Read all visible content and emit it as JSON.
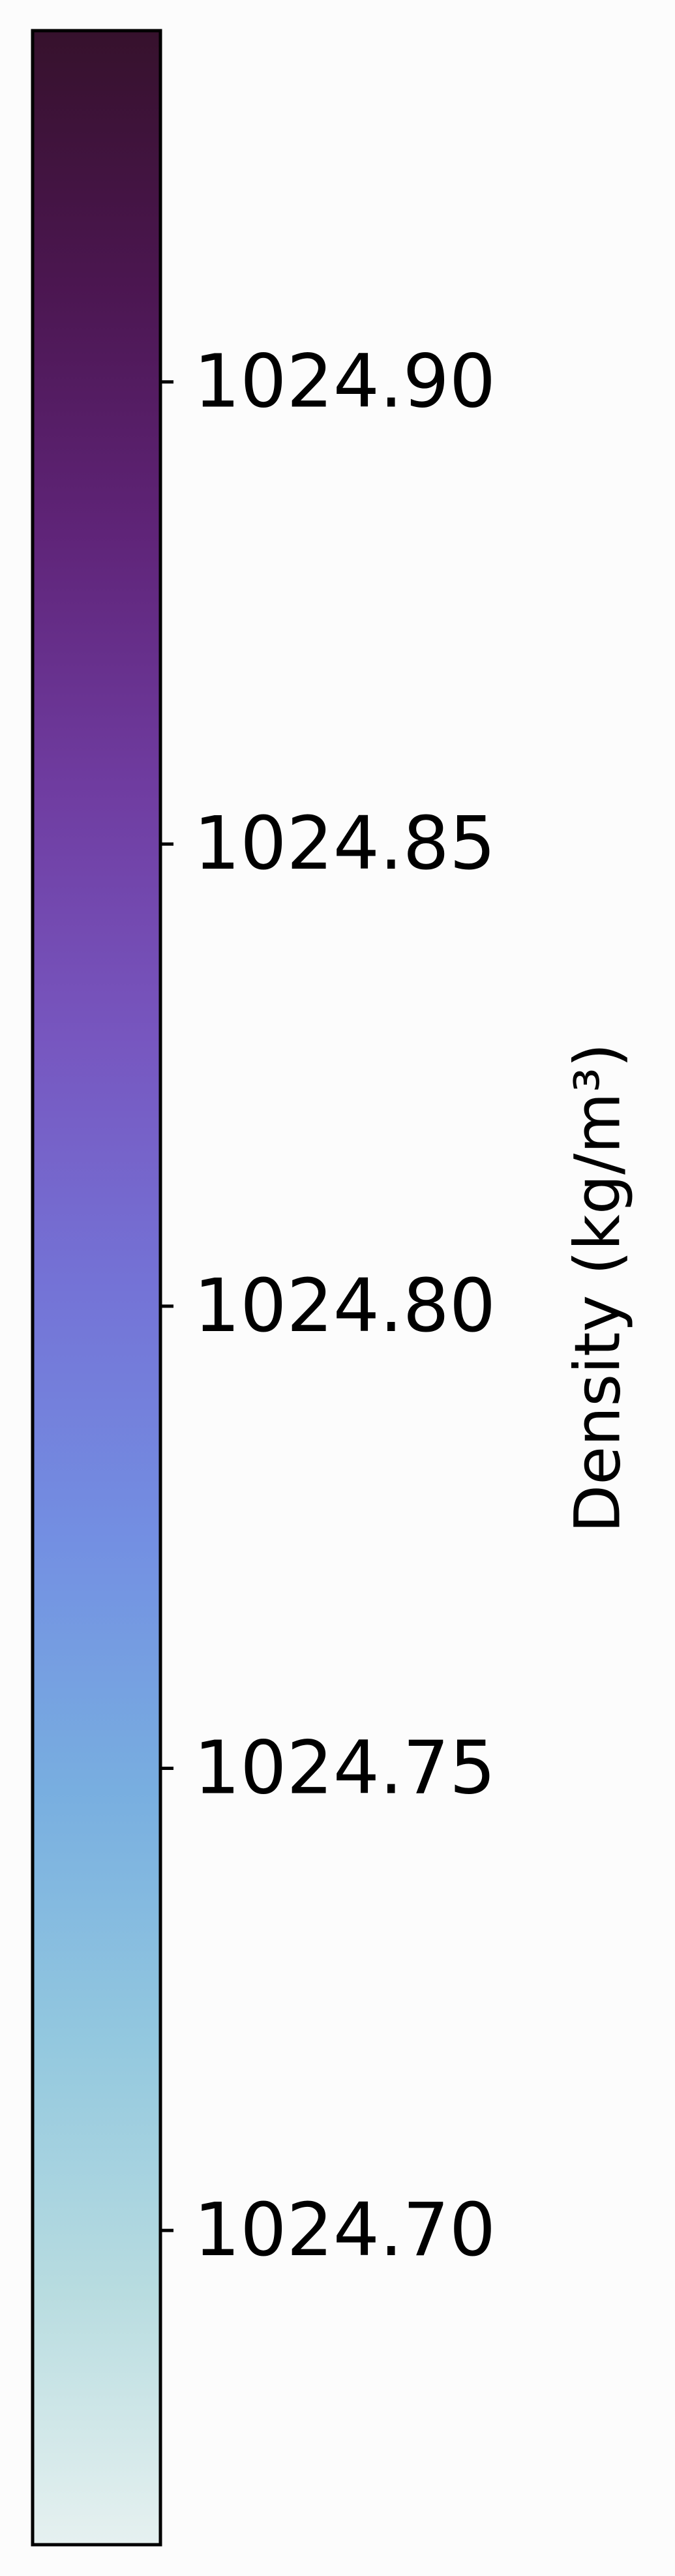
{
  "chart_data": {
    "type": "colorbar",
    "orientation": "vertical",
    "label": "Density (kg/m³)",
    "range": [
      1024.666,
      1024.938
    ],
    "ticks": [
      {
        "value": 1024.7,
        "label": "1024.70"
      },
      {
        "value": 1024.75,
        "label": "1024.75"
      },
      {
        "value": 1024.8,
        "label": "1024.80"
      },
      {
        "value": 1024.85,
        "label": "1024.85"
      },
      {
        "value": 1024.9,
        "label": "1024.90"
      }
    ],
    "colormap": "dense",
    "color_stops": [
      {
        "offset": 0.0,
        "color": "#e6f1f0"
      },
      {
        "offset": 0.1,
        "color": "#b8dce0"
      },
      {
        "offset": 0.2,
        "color": "#93c8df"
      },
      {
        "offset": 0.3,
        "color": "#78aee0"
      },
      {
        "offset": 0.4,
        "color": "#738fe2"
      },
      {
        "offset": 0.5,
        "color": "#7473d6"
      },
      {
        "offset": 0.6,
        "color": "#7756bf"
      },
      {
        "offset": 0.7,
        "color": "#6f3ca0"
      },
      {
        "offset": 0.8,
        "color": "#5f2478"
      },
      {
        "offset": 0.9,
        "color": "#4b1650"
      },
      {
        "offset": 1.0,
        "color": "#36112c"
      }
    ]
  }
}
